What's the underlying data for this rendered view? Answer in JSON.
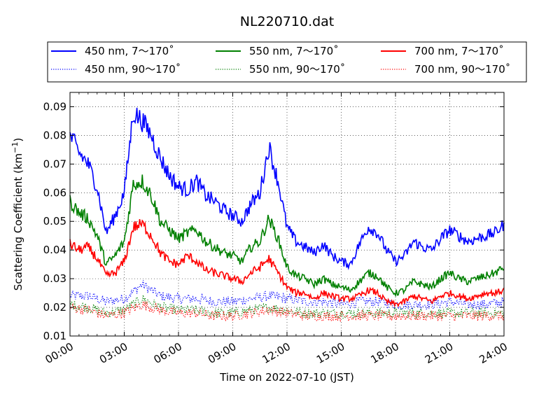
{
  "chart_data": {
    "type": "line",
    "title": "NL220710.dat",
    "xlabel": "Time on 2022-07-10 (JST)",
    "ylabel": "Scattering Coefficient (km",
    "ylabel_sup": "−1",
    "ylabel_close": ")",
    "xlim": [
      "00:00",
      "24:00"
    ],
    "ylim": [
      0.01,
      0.095
    ],
    "x_ticks": [
      "00:00",
      "03:00",
      "06:00",
      "09:00",
      "12:00",
      "15:00",
      "18:00",
      "21:00",
      "24:00"
    ],
    "y_ticks": [
      "0.01",
      "0.02",
      "0.03",
      "0.04",
      "0.05",
      "0.06",
      "0.07",
      "0.08",
      "0.09"
    ],
    "grid": true,
    "legend_position": "top",
    "series": [
      {
        "name": "450 nm, 7～170˚",
        "color": "#0000ff",
        "style": "solid",
        "x": [
          "00:00",
          "00:30",
          "01:00",
          "01:30",
          "02:00",
          "02:30",
          "03:00",
          "03:30",
          "04:00",
          "04:30",
          "05:00",
          "05:30",
          "06:00",
          "06:30",
          "07:00",
          "07:30",
          "08:00",
          "08:30",
          "09:00",
          "09:30",
          "10:00",
          "10:30",
          "11:00",
          "11:30",
          "12:00",
          "12:30",
          "13:00",
          "13:30",
          "14:00",
          "14:30",
          "15:00",
          "15:30",
          "16:00",
          "16:30",
          "17:00",
          "17:30",
          "18:00",
          "18:30",
          "19:00",
          "19:30",
          "20:00",
          "20:30",
          "21:00",
          "21:30",
          "22:00",
          "22:30",
          "23:00",
          "23:30",
          "24:00"
        ],
        "values": [
          0.08,
          0.074,
          0.07,
          0.062,
          0.046,
          0.052,
          0.06,
          0.088,
          0.085,
          0.08,
          0.072,
          0.066,
          0.062,
          0.061,
          0.064,
          0.059,
          0.057,
          0.054,
          0.052,
          0.05,
          0.056,
          0.06,
          0.076,
          0.064,
          0.048,
          0.043,
          0.041,
          0.039,
          0.042,
          0.038,
          0.036,
          0.035,
          0.042,
          0.048,
          0.046,
          0.04,
          0.036,
          0.038,
          0.043,
          0.041,
          0.04,
          0.044,
          0.047,
          0.045,
          0.043,
          0.044,
          0.045,
          0.046,
          0.049
        ]
      },
      {
        "name": "550 nm, 7～170˚",
        "color": "#008000",
        "style": "solid",
        "x": [
          "00:00",
          "00:30",
          "01:00",
          "01:30",
          "02:00",
          "02:30",
          "03:00",
          "03:30",
          "04:00",
          "04:30",
          "05:00",
          "05:30",
          "06:00",
          "06:30",
          "07:00",
          "07:30",
          "08:00",
          "08:30",
          "09:00",
          "09:30",
          "10:00",
          "10:30",
          "11:00",
          "11:30",
          "12:00",
          "12:30",
          "13:00",
          "13:30",
          "14:00",
          "14:30",
          "15:00",
          "15:30",
          "16:00",
          "16:30",
          "17:00",
          "17:30",
          "18:00",
          "18:30",
          "19:00",
          "19:30",
          "20:00",
          "20:30",
          "21:00",
          "21:30",
          "22:00",
          "22:30",
          "23:00",
          "23:30",
          "24:00"
        ],
        "values": [
          0.057,
          0.053,
          0.051,
          0.045,
          0.035,
          0.038,
          0.043,
          0.063,
          0.064,
          0.059,
          0.05,
          0.047,
          0.044,
          0.046,
          0.047,
          0.043,
          0.041,
          0.039,
          0.038,
          0.036,
          0.041,
          0.043,
          0.051,
          0.044,
          0.034,
          0.031,
          0.03,
          0.028,
          0.03,
          0.028,
          0.027,
          0.026,
          0.029,
          0.032,
          0.031,
          0.027,
          0.025,
          0.026,
          0.029,
          0.028,
          0.027,
          0.03,
          0.032,
          0.03,
          0.029,
          0.03,
          0.031,
          0.032,
          0.034
        ]
      },
      {
        "name": "700 nm, 7～170˚",
        "color": "#ff0000",
        "style": "solid",
        "x": [
          "00:00",
          "00:30",
          "01:00",
          "01:30",
          "02:00",
          "02:30",
          "03:00",
          "03:30",
          "04:00",
          "04:30",
          "05:00",
          "05:30",
          "06:00",
          "06:30",
          "07:00",
          "07:30",
          "08:00",
          "08:30",
          "09:00",
          "09:30",
          "10:00",
          "10:30",
          "11:00",
          "11:30",
          "12:00",
          "12:30",
          "13:00",
          "13:30",
          "14:00",
          "14:30",
          "15:00",
          "15:30",
          "16:00",
          "16:30",
          "17:00",
          "17:30",
          "18:00",
          "18:30",
          "19:00",
          "19:30",
          "20:00",
          "20:30",
          "21:00",
          "21:30",
          "22:00",
          "22:30",
          "23:00",
          "23:30",
          "24:00"
        ],
        "values": [
          0.042,
          0.04,
          0.041,
          0.037,
          0.031,
          0.032,
          0.036,
          0.048,
          0.049,
          0.045,
          0.039,
          0.036,
          0.035,
          0.038,
          0.036,
          0.033,
          0.032,
          0.031,
          0.03,
          0.029,
          0.032,
          0.034,
          0.037,
          0.032,
          0.027,
          0.025,
          0.025,
          0.023,
          0.025,
          0.024,
          0.023,
          0.023,
          0.024,
          0.026,
          0.025,
          0.022,
          0.021,
          0.022,
          0.024,
          0.023,
          0.022,
          0.024,
          0.025,
          0.024,
          0.023,
          0.024,
          0.025,
          0.025,
          0.026
        ]
      },
      {
        "name": "450 nm, 90～170˚",
        "color": "#0000ff",
        "style": "dotted",
        "x": [
          "00:00",
          "01:00",
          "02:00",
          "03:00",
          "04:00",
          "05:00",
          "06:00",
          "07:00",
          "08:00",
          "09:00",
          "10:00",
          "11:00",
          "12:00",
          "13:00",
          "14:00",
          "15:00",
          "16:00",
          "17:00",
          "18:00",
          "19:00",
          "20:00",
          "21:00",
          "22:00",
          "23:00",
          "24:00"
        ],
        "values": [
          0.024,
          0.024,
          0.022,
          0.023,
          0.028,
          0.024,
          0.023,
          0.023,
          0.022,
          0.022,
          0.023,
          0.024,
          0.023,
          0.022,
          0.022,
          0.021,
          0.022,
          0.022,
          0.021,
          0.021,
          0.021,
          0.022,
          0.021,
          0.021,
          0.022
        ]
      },
      {
        "name": "550 nm, 90～170˚",
        "color": "#008000",
        "style": "dotted",
        "x": [
          "00:00",
          "01:00",
          "02:00",
          "03:00",
          "04:00",
          "05:00",
          "06:00",
          "07:00",
          "08:00",
          "09:00",
          "10:00",
          "11:00",
          "12:00",
          "13:00",
          "14:00",
          "15:00",
          "16:00",
          "17:00",
          "18:00",
          "19:00",
          "20:00",
          "21:00",
          "22:00",
          "23:00",
          "24:00"
        ],
        "values": [
          0.021,
          0.02,
          0.018,
          0.019,
          0.023,
          0.02,
          0.019,
          0.019,
          0.018,
          0.018,
          0.019,
          0.02,
          0.019,
          0.018,
          0.018,
          0.018,
          0.018,
          0.018,
          0.018,
          0.018,
          0.018,
          0.018,
          0.018,
          0.018,
          0.018
        ]
      },
      {
        "name": "700 nm, 90～170˚",
        "color": "#ff0000",
        "style": "dotted",
        "x": [
          "00:00",
          "01:00",
          "02:00",
          "03:00",
          "04:00",
          "05:00",
          "06:00",
          "07:00",
          "08:00",
          "09:00",
          "10:00",
          "11:00",
          "12:00",
          "13:00",
          "14:00",
          "15:00",
          "16:00",
          "17:00",
          "18:00",
          "19:00",
          "20:00",
          "21:00",
          "22:00",
          "23:00",
          "24:00"
        ],
        "values": [
          0.02,
          0.019,
          0.017,
          0.018,
          0.021,
          0.019,
          0.018,
          0.018,
          0.017,
          0.017,
          0.018,
          0.019,
          0.018,
          0.017,
          0.017,
          0.017,
          0.017,
          0.017,
          0.017,
          0.017,
          0.017,
          0.017,
          0.017,
          0.017,
          0.017
        ]
      }
    ],
    "legend_order": [
      0,
      1,
      2,
      3,
      4,
      5
    ]
  }
}
